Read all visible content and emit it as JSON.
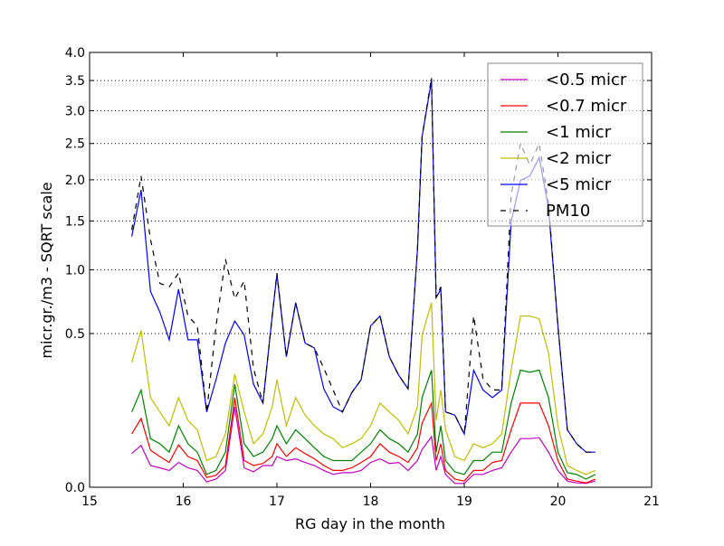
{
  "chart_data": {
    "type": "line",
    "title": "",
    "xlabel": "RG day in the month",
    "ylabel": "micr.gr./m3 - SQRT scale",
    "xlim": [
      15,
      21
    ],
    "ylim": [
      0,
      4
    ],
    "y_scale": "sqrt",
    "grid": "horizontal dotted",
    "legend_position": "top-right",
    "xticks": [
      "15",
      "16",
      "17",
      "18",
      "19",
      "20",
      "21"
    ],
    "yticks": [
      "0.0",
      "0.5",
      "1.0",
      "1.5",
      "2.0",
      "2.5",
      "3.0",
      "3.5",
      "4.0"
    ],
    "x": [
      15.45,
      15.55,
      15.65,
      15.75,
      15.85,
      15.95,
      16.05,
      16.15,
      16.25,
      16.35,
      16.45,
      16.55,
      16.65,
      16.75,
      16.85,
      16.95,
      17.0,
      17.1,
      17.2,
      17.3,
      17.4,
      17.5,
      17.6,
      17.7,
      17.8,
      17.9,
      18.0,
      18.1,
      18.2,
      18.3,
      18.4,
      18.5,
      18.55,
      18.65,
      18.7,
      18.75,
      18.8,
      18.9,
      19.0,
      19.1,
      19.2,
      19.3,
      19.4,
      19.5,
      19.6,
      19.7,
      19.8,
      19.9,
      20.0,
      20.1,
      20.2,
      20.3,
      20.4
    ],
    "series": [
      {
        "name": "<0.5 micr",
        "color": "#bf00bf",
        "dash": "solid",
        "values": [
          0.024,
          0.037,
          0.01,
          0.008,
          0.006,
          0.013,
          0.008,
          0.006,
          0.0006,
          0.0014,
          0.006,
          0.137,
          0.008,
          0.005,
          0.01,
          0.01,
          0.02,
          0.015,
          0.017,
          0.013,
          0.01,
          0.006,
          0.0035,
          0.0045,
          0.0045,
          0.006,
          0.013,
          0.017,
          0.012,
          0.013,
          0.006,
          0.015,
          0.03,
          0.054,
          0.006,
          0.02,
          0.0035,
          0.0003,
          0.0003,
          0.0035,
          0.0035,
          0.006,
          0.008,
          0.026,
          0.05,
          0.05,
          0.052,
          0.026,
          0.006,
          0.0008,
          0.0004,
          0.0003,
          0.0008
        ]
      },
      {
        "name": "<0.7 micr",
        "color": "#ff0000",
        "dash": "solid",
        "values": [
          0.06,
          0.1,
          0.029,
          0.02,
          0.013,
          0.038,
          0.02,
          0.015,
          0.002,
          0.003,
          0.01,
          0.17,
          0.015,
          0.01,
          0.012,
          0.02,
          0.04,
          0.02,
          0.033,
          0.024,
          0.017,
          0.01,
          0.006,
          0.006,
          0.008,
          0.013,
          0.02,
          0.04,
          0.026,
          0.02,
          0.013,
          0.033,
          0.087,
          0.15,
          0.015,
          0.04,
          0.006,
          0.0014,
          0.0008,
          0.006,
          0.006,
          0.013,
          0.015,
          0.07,
          0.15,
          0.15,
          0.15,
          0.08,
          0.015,
          0.0014,
          0.0008,
          0.0004,
          0.0014
        ]
      },
      {
        "name": "<1 micr",
        "color": "#008000",
        "dash": "solid",
        "values": [
          0.12,
          0.2,
          0.05,
          0.04,
          0.026,
          0.08,
          0.04,
          0.026,
          0.0035,
          0.006,
          0.026,
          0.225,
          0.04,
          0.02,
          0.026,
          0.05,
          0.08,
          0.04,
          0.07,
          0.05,
          0.033,
          0.02,
          0.015,
          0.015,
          0.015,
          0.026,
          0.04,
          0.07,
          0.05,
          0.04,
          0.026,
          0.06,
          0.17,
          0.29,
          0.026,
          0.08,
          0.015,
          0.005,
          0.0035,
          0.015,
          0.015,
          0.026,
          0.026,
          0.15,
          0.29,
          0.28,
          0.29,
          0.17,
          0.026,
          0.0045,
          0.0035,
          0.0014,
          0.0035
        ]
      },
      {
        "name": "<2 micr",
        "color": "#bfbf00",
        "dash": "solid",
        "values": [
          0.33,
          0.52,
          0.17,
          0.12,
          0.08,
          0.17,
          0.095,
          0.07,
          0.015,
          0.02,
          0.06,
          0.27,
          0.12,
          0.04,
          0.06,
          0.137,
          0.245,
          0.08,
          0.17,
          0.11,
          0.08,
          0.06,
          0.05,
          0.033,
          0.04,
          0.05,
          0.08,
          0.15,
          0.12,
          0.095,
          0.06,
          0.137,
          0.49,
          0.72,
          0.095,
          0.2,
          0.07,
          0.02,
          0.015,
          0.04,
          0.033,
          0.04,
          0.06,
          0.29,
          0.62,
          0.62,
          0.6,
          0.38,
          0.08,
          0.01,
          0.006,
          0.0035,
          0.006
        ]
      },
      {
        "name": "<5 micr",
        "color": "#0000ff",
        "dash": "solid",
        "values": [
          1.33,
          1.87,
          0.81,
          0.65,
          0.46,
          0.83,
          0.46,
          0.46,
          0.12,
          0.245,
          0.44,
          0.585,
          0.49,
          0.225,
          0.15,
          0.62,
          0.96,
          0.36,
          0.72,
          0.44,
          0.41,
          0.205,
          0.137,
          0.12,
          0.19,
          0.245,
          0.55,
          0.62,
          0.36,
          0.265,
          0.205,
          1.2,
          2.6,
          3.5,
          0.76,
          0.83,
          0.12,
          0.11,
          0.06,
          0.29,
          0.2,
          0.17,
          0.2,
          1.49,
          1.99,
          2.05,
          2.3,
          1.65,
          0.55,
          0.07,
          0.04,
          0.026,
          0.026
        ]
      },
      {
        "name": "PM10",
        "color": "#000000",
        "dash": "dashed",
        "values": [
          1.4,
          2.05,
          1.3,
          0.88,
          0.85,
          0.97,
          0.62,
          0.55,
          0.12,
          0.55,
          1.1,
          0.75,
          0.9,
          0.3,
          0.15,
          0.62,
          0.97,
          0.36,
          0.72,
          0.44,
          0.41,
          0.3,
          0.2,
          0.12,
          0.19,
          0.245,
          0.55,
          0.62,
          0.36,
          0.265,
          0.205,
          1.2,
          2.6,
          3.55,
          0.76,
          0.85,
          0.12,
          0.11,
          0.06,
          0.62,
          0.25,
          0.2,
          0.2,
          1.8,
          2.5,
          2.2,
          2.5,
          1.7,
          0.55,
          0.07,
          0.04,
          0.026,
          0.026
        ]
      }
    ]
  }
}
